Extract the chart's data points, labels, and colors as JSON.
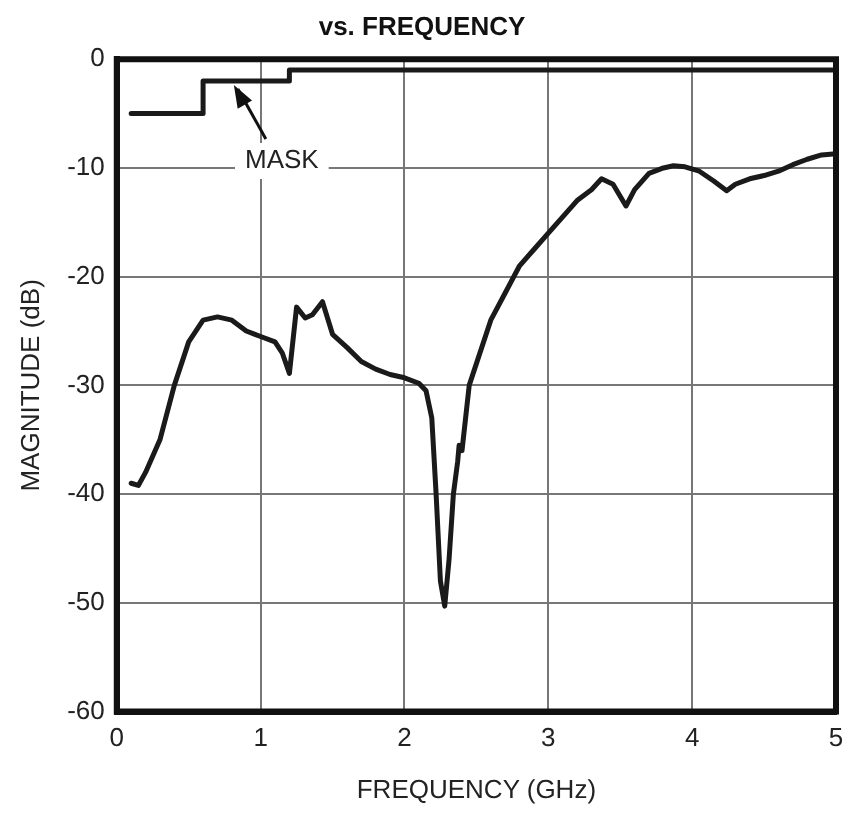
{
  "chart_data": {
    "type": "line",
    "title": "vs. FREQUENCY",
    "xlabel": "FREQUENCY (GHz)",
    "ylabel": "MAGNITUDE (dB)",
    "xlim": [
      0,
      5
    ],
    "xticks": [
      0,
      1,
      2,
      3,
      4,
      5
    ],
    "ylim": [
      -60,
      0
    ],
    "yticks": [
      -60,
      -50,
      -40,
      -30,
      -20,
      -10,
      0
    ],
    "grid": true,
    "legend": false,
    "marker": "none",
    "line_style": "solid",
    "annotations": [
      {
        "text": "MASK",
        "x": 0.8,
        "y": -2
      }
    ],
    "series": [
      {
        "type": "step",
        "color": "#1a1a1a",
        "x": [
          0.1,
          0.6,
          1.2,
          5
        ],
        "values": [
          -5,
          -2,
          -1,
          -1
        ]
      },
      {
        "color": "#1a1a1a",
        "x": [
          0.1,
          0.15,
          0.2,
          0.3,
          0.4,
          0.5,
          0.6,
          0.7,
          0.8,
          0.9,
          1.0,
          1.1,
          1.15,
          1.2,
          1.25,
          1.31,
          1.36,
          1.43,
          1.5,
          1.6,
          1.7,
          1.8,
          1.9,
          2.0,
          2.1,
          2.15,
          2.19,
          2.22,
          2.25,
          2.28,
          2.31,
          2.34,
          2.37,
          2.38,
          2.4,
          2.45,
          2.5,
          2.6,
          2.7,
          2.8,
          2.9,
          3.0,
          3.1,
          3.2,
          3.3,
          3.37,
          3.45,
          3.54,
          3.6,
          3.7,
          3.8,
          3.87,
          3.95,
          4.05,
          4.15,
          4.24,
          4.3,
          4.4,
          4.5,
          4.6,
          4.7,
          4.8,
          4.9,
          5.0
        ],
        "values": [
          -39,
          -39.2,
          -38,
          -35,
          -30,
          -26,
          -24,
          -23.7,
          -24,
          -25,
          -25.5,
          -26,
          -27,
          -28.9,
          -22.8,
          -23.8,
          -23.5,
          -22.3,
          -25.3,
          -26.5,
          -27.8,
          -28.5,
          -29,
          -29.3,
          -29.8,
          -30.5,
          -33,
          -40,
          -48,
          -50.3,
          -46,
          -40,
          -37,
          -35.5,
          -36,
          -30,
          -28,
          -24,
          -21.5,
          -19,
          -17.5,
          -16,
          -14.5,
          -13,
          -12,
          -11,
          -11.5,
          -13.5,
          -12,
          -10.5,
          -10,
          -9.8,
          -9.9,
          -10.3,
          -11.2,
          -12.1,
          -11.5,
          -11,
          -10.7,
          -10.3,
          -9.7,
          -9.2,
          -8.8,
          -8.7
        ]
      }
    ]
  }
}
